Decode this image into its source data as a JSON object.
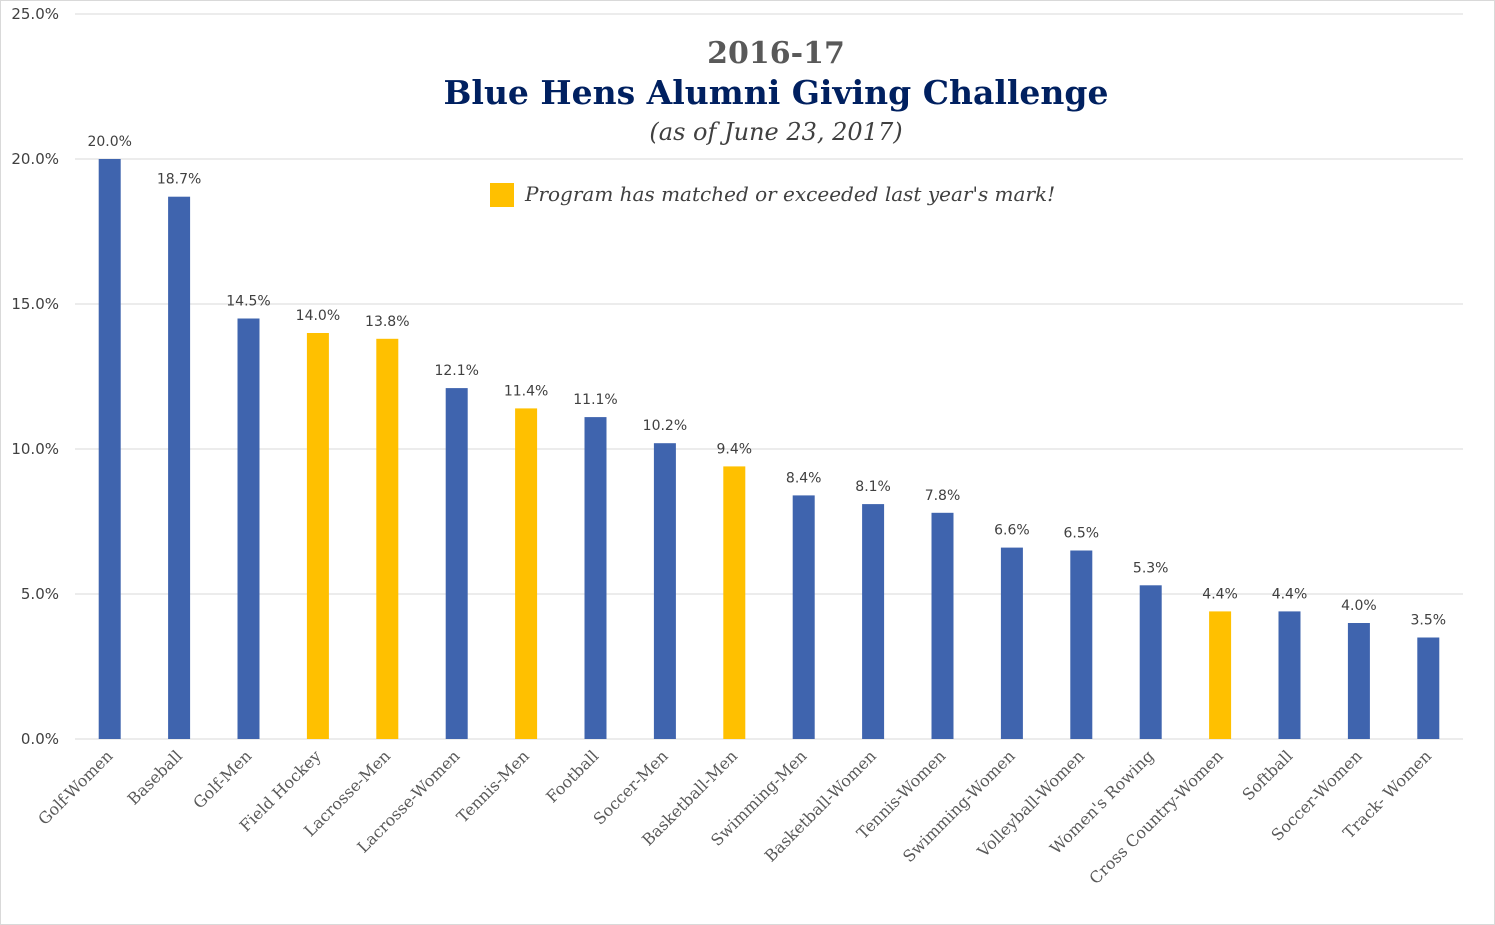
{
  "chart_data": {
    "type": "bar",
    "title_year": "2016-17",
    "title": "Blue Hens Alumni Giving Challenge",
    "subtitle": "(as of June 23, 2017)",
    "legend": {
      "label": "Program has matched or exceeded last year's mark!",
      "color": "#FFC000",
      "placement": "top-center"
    },
    "default_color": "#3F64AE",
    "ylim": [
      0,
      25
    ],
    "yticks": [
      0,
      5,
      10,
      15,
      20,
      25
    ],
    "ytick_labels": [
      "0.0%",
      "5.0%",
      "10.0%",
      "15.0%",
      "20.0%",
      "25.0%"
    ],
    "grid": true,
    "categories": [
      "Golf-Women",
      "Baseball",
      "Golf-Men",
      "Field Hockey",
      "Lacrosse-Men",
      "Lacrosse-Women",
      "Tennis-Men",
      "Football",
      "Soccer-Men",
      "Basketball-Men",
      "Swimming-Men",
      "Basketball-Women",
      "Tennis-Women",
      "Swimming-Women",
      "Volleyball-Women",
      "Women's Rowing",
      "Cross Country-Women",
      "Softball",
      "Soccer-Women",
      "Track- Women"
    ],
    "values": [
      20.0,
      18.7,
      14.5,
      14.0,
      13.8,
      12.1,
      11.4,
      11.1,
      10.2,
      9.4,
      8.4,
      8.1,
      7.8,
      6.6,
      6.5,
      5.3,
      4.4,
      4.4,
      4.0,
      3.5
    ],
    "value_labels": [
      "20.0%",
      "18.7%",
      "14.5%",
      "14.0%",
      "13.8%",
      "12.1%",
      "11.4%",
      "11.1%",
      "10.2%",
      "9.4%",
      "8.4%",
      "8.1%",
      "7.8%",
      "6.6%",
      "6.5%",
      "5.3%",
      "4.4%",
      "4.4%",
      "4.0%",
      "3.5%"
    ],
    "matched_last_year": [
      false,
      false,
      false,
      true,
      true,
      false,
      true,
      false,
      false,
      true,
      false,
      false,
      false,
      false,
      false,
      false,
      true,
      false,
      false,
      false
    ]
  }
}
